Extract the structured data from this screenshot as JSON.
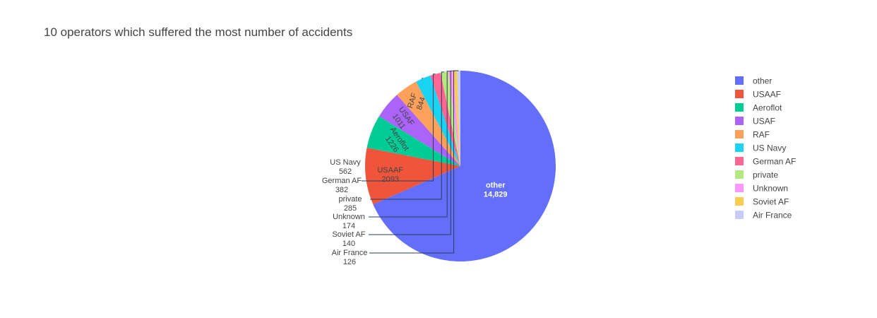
{
  "chart_data": {
    "type": "pie",
    "title": "10 operators which suffered the most number of accidents",
    "legend_position": "right",
    "slices": [
      {
        "label": "other",
        "value": 14829,
        "display_value": "14,829",
        "color": "#636efa"
      },
      {
        "label": "USAAF",
        "value": 2093,
        "display_value": "2093",
        "color": "#ef553b"
      },
      {
        "label": "Aeroflot",
        "value": 1226,
        "display_value": "1226",
        "color": "#00cc96"
      },
      {
        "label": "USAF",
        "value": 1011,
        "display_value": "1011",
        "color": "#ab63fa"
      },
      {
        "label": "RAF",
        "value": 844,
        "display_value": "844",
        "color": "#ffa15a"
      },
      {
        "label": "US Navy",
        "value": 562,
        "display_value": "562",
        "color": "#19d3f3"
      },
      {
        "label": "German AF",
        "value": 382,
        "display_value": "382",
        "color": "#ff6692"
      },
      {
        "label": "private",
        "value": 285,
        "display_value": "285",
        "color": "#b6e880"
      },
      {
        "label": "Unknown",
        "value": 174,
        "display_value": "174",
        "color": "#ff97ff"
      },
      {
        "label": "Soviet AF",
        "value": 140,
        "display_value": "140",
        "color": "#fecb52"
      },
      {
        "label": "Air France",
        "value": 126,
        "display_value": "126",
        "color": "#c6cbf8"
      }
    ]
  }
}
